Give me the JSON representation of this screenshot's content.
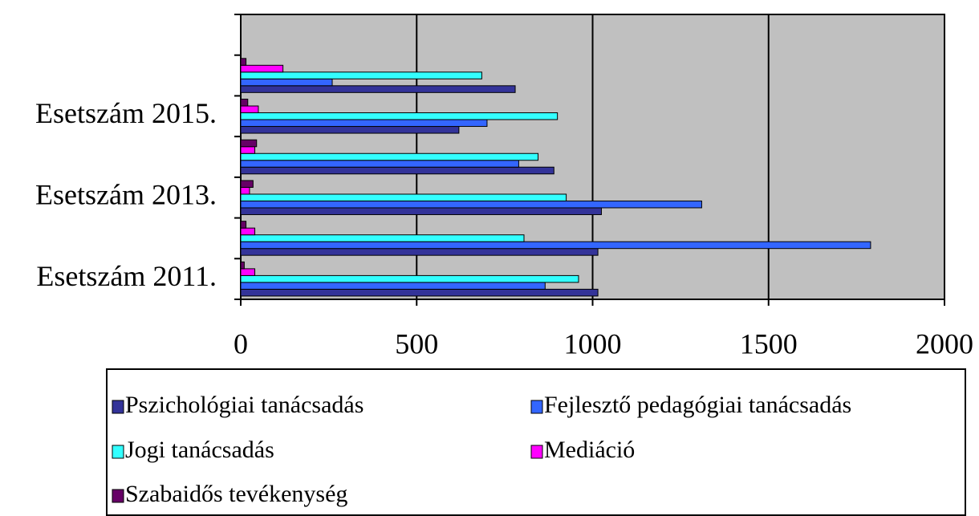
{
  "chart_data": {
    "type": "bar",
    "orientation": "horizontal",
    "categories": [
      "Esetszám 2011.",
      null,
      "Esetszám 2013.",
      null,
      "Esetszám 2015.",
      null,
      null
    ],
    "series": [
      {
        "name": "Pszichológiai tanácsadás",
        "color": "#333399",
        "values": [
          1015,
          1015,
          1025,
          890,
          620,
          780,
          null
        ]
      },
      {
        "name": "Fejlesztő pedagógiai tanácsadás",
        "color": "#3366ff",
        "values": [
          865,
          1790,
          1310,
          790,
          700,
          260,
          null
        ]
      },
      {
        "name": "Jogi tanácsadás",
        "color": "#33ffff",
        "values": [
          960,
          805,
          925,
          845,
          900,
          685,
          null
        ]
      },
      {
        "name": "Mediáció",
        "color": "#ff00ff",
        "values": [
          40,
          40,
          25,
          40,
          50,
          120,
          null
        ]
      },
      {
        "name": "Szabaidős tevékenység",
        "color": "#660066",
        "values": [
          10,
          15,
          35,
          45,
          20,
          15,
          null
        ]
      }
    ],
    "xlim": [
      0,
      2000
    ],
    "xticks": [
      0,
      500,
      1000,
      1500,
      2000
    ],
    "grid": true,
    "legend": "bottom"
  }
}
